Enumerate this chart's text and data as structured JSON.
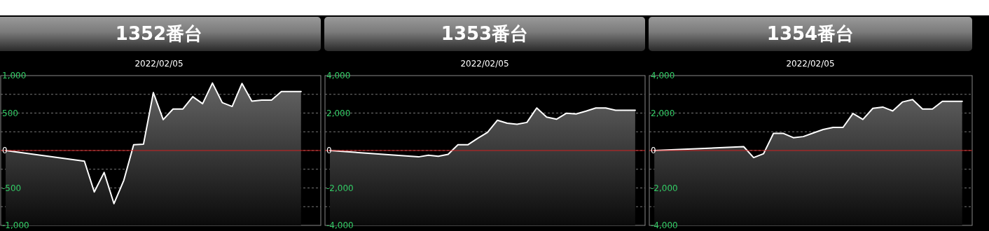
{
  "chart_data": [
    {
      "type": "line",
      "title": "1352番台",
      "subtitle": "2022/02/05",
      "categories": [
        null,
        null,
        null,
        null,
        null,
        null,
        null,
        null,
        null,
        null,
        null,
        null,
        null,
        null,
        null,
        null,
        null,
        null,
        null,
        null,
        null,
        null,
        null,
        null,
        null,
        null,
        null,
        null,
        null,
        null,
        null,
        null
      ],
      "series": [
        {
          "color": "#ffffff",
          "values": [
            0,
            null,
            null,
            null,
            null,
            null,
            null,
            null,
            -142,
            -554,
            -293,
            -710,
            -398,
            77,
            85,
            773,
            412,
            554,
            554,
            719,
            625,
            901,
            639,
            588,
            895,
            659,
            673,
            673,
            787,
            787,
            787,
            null
          ]
        }
      ],
      "ylim": [
        -1000,
        1000
      ],
      "yticks": [
        {
          "value": -1000,
          "label": "-1,000"
        },
        {
          "value": -750,
          "label": null
        },
        -500,
        {
          "value": -250,
          "label": null
        },
        0,
        {
          "value": 250,
          "label": null
        },
        500,
        {
          "value": 750,
          "label": null
        },
        {
          "value": 1000,
          "label": "1,000"
        }
      ],
      "grid": "y",
      "tick_labels": "y",
      "ref_lines": [
        {
          "axis": "y",
          "value": 0,
          "color": "#d02020"
        }
      ]
    },
    {
      "type": "line",
      "title": "1353番台",
      "subtitle": "2022/02/05",
      "categories": [
        null,
        null,
        null,
        null,
        null,
        null,
        null,
        null,
        null,
        null,
        null,
        null,
        null,
        null,
        null,
        null,
        null,
        null,
        null,
        null,
        null,
        null,
        null,
        null,
        null,
        null,
        null,
        null,
        null,
        null,
        null,
        null
      ],
      "series": [
        {
          "color": "#ffffff",
          "values": [
            0,
            null,
            null,
            null,
            null,
            null,
            null,
            null,
            null,
            -341,
            -250,
            -307,
            -205,
            307,
            307,
            648,
            966,
            1614,
            1455,
            1398,
            1500,
            2273,
            1784,
            1670,
            1989,
            1955,
            2102,
            2273,
            2273,
            2148,
            2148,
            2148
          ]
        }
      ],
      "ylim": [
        -4000,
        4000
      ],
      "yticks": [
        {
          "value": -4000,
          "label": "-4,000"
        },
        {
          "value": -3000,
          "label": null
        },
        {
          "value": -2000,
          "label": "-2,000"
        },
        {
          "value": -1000,
          "label": null
        },
        0,
        {
          "value": 1000,
          "label": null
        },
        {
          "value": 2000,
          "label": "2,000"
        },
        {
          "value": 3000,
          "label": null
        },
        {
          "value": 4000,
          "label": "4,000"
        }
      ],
      "grid": "y",
      "tick_labels": "y",
      "ref_lines": [
        {
          "axis": "y",
          "value": 0,
          "color": "#d02020"
        }
      ]
    },
    {
      "type": "line",
      "title": "1354番台",
      "subtitle": "2022/02/05",
      "categories": [
        null,
        null,
        null,
        null,
        null,
        null,
        null,
        null,
        null,
        null,
        null,
        null,
        null,
        null,
        null,
        null,
        null,
        null,
        null,
        null,
        null,
        null,
        null,
        null,
        null,
        null,
        null,
        null,
        null,
        null,
        null,
        null
      ],
      "series": [
        {
          "color": "#ffffff",
          "values": [
            0,
            null,
            null,
            null,
            null,
            null,
            null,
            null,
            null,
            206,
            -377,
            -171,
            914,
            914,
            686,
            743,
            937,
            1120,
            1234,
            1234,
            1977,
            1657,
            2251,
            2320,
            2114,
            2594,
            2720,
            2217,
            2217,
            2629,
            2629,
            2629
          ]
        }
      ],
      "ylim": [
        -4000,
        4000
      ],
      "yticks": [
        {
          "value": -4000,
          "label": "-4,000"
        },
        {
          "value": -3000,
          "label": null
        },
        {
          "value": -2000,
          "label": "-2,000"
        },
        {
          "value": -1000,
          "label": null
        },
        0,
        {
          "value": 1000,
          "label": null
        },
        {
          "value": 2000,
          "label": "2,000"
        },
        {
          "value": 3000,
          "label": null
        },
        {
          "value": 4000,
          "label": "4,000"
        }
      ],
      "grid": "y",
      "tick_labels": "y",
      "ref_lines": [
        {
          "axis": "y",
          "value": 0,
          "color": "#d02020"
        }
      ]
    }
  ]
}
